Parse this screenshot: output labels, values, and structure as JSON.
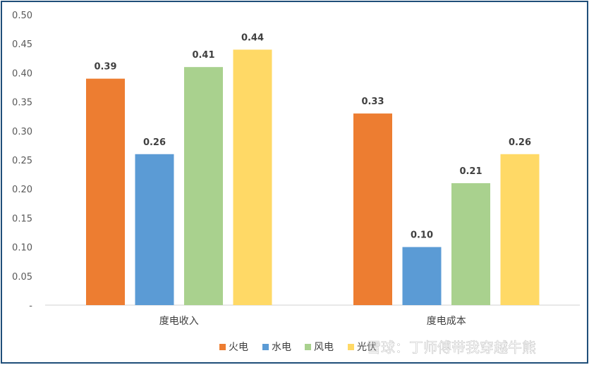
{
  "chart_data": {
    "type": "bar",
    "categories": [
      "度电收入",
      "度电成本"
    ],
    "series": [
      {
        "name": "火电",
        "color": "#ed7d31",
        "values": [
          0.39,
          0.33
        ],
        "labels": [
          "0.39",
          "0.33"
        ]
      },
      {
        "name": "水电",
        "color": "#5b9bd5",
        "values": [
          0.26,
          0.1
        ],
        "labels": [
          "0.26",
          "0.10"
        ]
      },
      {
        "name": "风电",
        "color": "#a9d18e",
        "values": [
          0.41,
          0.21
        ],
        "labels": [
          "0.41",
          "0.21"
        ]
      },
      {
        "name": "光伏",
        "color": "#ffd966",
        "values": [
          0.44,
          0.26
        ],
        "labels": [
          "0.44",
          "0.26"
        ]
      }
    ],
    "ylim": [
      0,
      0.5
    ],
    "yticks": [
      "-",
      "0.05",
      "0.10",
      "0.15",
      "0.20",
      "0.25",
      "0.30",
      "0.35",
      "0.40",
      "0.45",
      "0.50"
    ],
    "legend_position": "bottom-right",
    "grid": false
  },
  "watermark": "雪球：丁师傅带我穿越牛熊"
}
